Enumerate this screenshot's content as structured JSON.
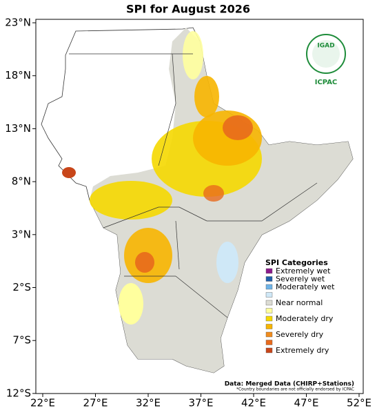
{
  "map": {
    "title": "SPI for August 2026",
    "xticks": [
      {
        "value": 22,
        "label": "22°E"
      },
      {
        "value": 27,
        "label": "27°E"
      },
      {
        "value": 32,
        "label": "32°E"
      },
      {
        "value": 37,
        "label": "37°E"
      },
      {
        "value": 42,
        "label": "42°E"
      },
      {
        "value": 47,
        "label": "47°E"
      },
      {
        "value": 52,
        "label": "52°E"
      }
    ],
    "yticks": [
      {
        "value": 23,
        "label": "23°N"
      },
      {
        "value": 18,
        "label": "18°N"
      },
      {
        "value": 13,
        "label": "13°N"
      },
      {
        "value": 8,
        "label": "8°N"
      },
      {
        "value": 3,
        "label": "3°N"
      },
      {
        "value": -2,
        "label": "2°S"
      },
      {
        "value": -7,
        "label": "7°S"
      },
      {
        "value": -12,
        "label": "12°S"
      }
    ],
    "legend": {
      "title": "SPI Categories",
      "items": [
        {
          "label": "Extremely wet",
          "color": "#8b1a8b"
        },
        {
          "label": "Severely wet",
          "color": "#1f5fa8"
        },
        {
          "label": "Moderately wet",
          "color": "#6fb4e8"
        },
        {
          "label": "",
          "color": "#cfe8f7"
        },
        {
          "label": "Near normal",
          "color": "#dcdcd4"
        },
        {
          "label": "",
          "color": "#ffff9e"
        },
        {
          "label": "Moderately dry",
          "color": "#f5d800"
        },
        {
          "label": "",
          "color": "#f7b500"
        },
        {
          "label": "Severely dry",
          "color": "#f08c1e"
        },
        {
          "label": "",
          "color": "#e86a1c"
        },
        {
          "label": "Extremely dry",
          "color": "#c8461a"
        }
      ]
    },
    "source": "Data: Merged Data (CHIRP+Stations)",
    "note": "*Country boundaries are not officially endorsed by ICPAC",
    "logo": {
      "name": "IGAD",
      "org": "ICPAC"
    }
  }
}
